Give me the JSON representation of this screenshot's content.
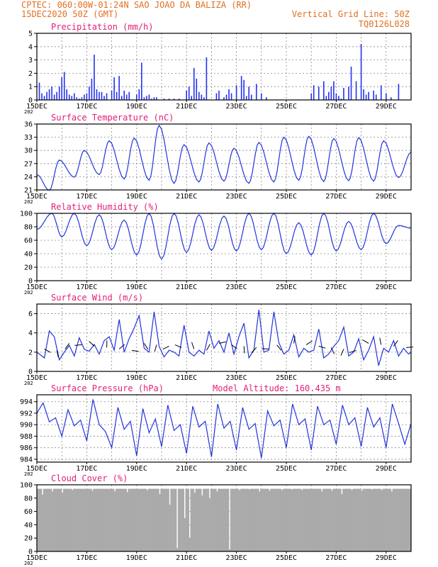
{
  "header": {
    "line1_left": "CPTEC:  060:00W-01:24N  SAO JOAO DA BALIZA (RR)",
    "line2_left": "15DEC2020 50Z (GMT)",
    "line2_right": "Vertical Grid Line: 50Z",
    "line3_right": "TQ0126L028"
  },
  "x_axis": {
    "ticks": [
      "15DEC",
      "17DEC",
      "19DEC",
      "21DEC",
      "23DEC",
      "25DEC",
      "27DEC",
      "29DEC"
    ],
    "year_label": "202",
    "range_days": [
      0,
      15
    ]
  },
  "colors": {
    "line": "#2233dd",
    "bars": "#2233ee",
    "cloud": "#aaaaaa",
    "header": "#e07020",
    "panel_title": "#e0207a"
  },
  "chart_data": [
    {
      "type": "bar",
      "title": "Precipitation (mm/h)",
      "yticks": [
        0,
        1,
        2,
        3,
        4,
        5
      ],
      "ylim": [
        0,
        5
      ],
      "x_unit": "days since 15DEC",
      "x": [
        0.1,
        0.2,
        0.3,
        0.4,
        0.5,
        0.6,
        0.7,
        0.8,
        0.9,
        1.0,
        1.1,
        1.2,
        1.3,
        1.4,
        1.5,
        1.6,
        1.7,
        1.8,
        1.9,
        2.0,
        2.1,
        2.2,
        2.3,
        2.4,
        2.5,
        2.6,
        2.7,
        2.8,
        3.0,
        3.1,
        3.2,
        3.3,
        3.4,
        3.5,
        3.6,
        3.7,
        4.0,
        4.1,
        4.2,
        4.3,
        4.4,
        4.5,
        4.6,
        4.7,
        4.8,
        5.1,
        5.3,
        5.5,
        5.7,
        6.0,
        6.1,
        6.2,
        6.3,
        6.4,
        6.5,
        6.6,
        6.7,
        6.8,
        7.2,
        7.3,
        7.5,
        7.6,
        7.7,
        7.8,
        8.0,
        8.2,
        8.3,
        8.4,
        8.5,
        8.6,
        8.8,
        9.0,
        9.2,
        11.0,
        11.1,
        11.3,
        11.5,
        11.6,
        11.7,
        11.8,
        11.9,
        12.0,
        12.1,
        12.2,
        12.3,
        12.5,
        12.6,
        12.8,
        13.0,
        13.1,
        13.2,
        13.3,
        13.5,
        13.6,
        13.8,
        14.0,
        14.2,
        14.5
      ],
      "values": [
        1.3,
        0.5,
        0.3,
        0.6,
        0.8,
        1.0,
        0.4,
        0.6,
        1.0,
        1.7,
        2.1,
        0.8,
        0.4,
        0.3,
        0.5,
        0.2,
        0.1,
        0.2,
        0.4,
        0.5,
        1.0,
        1.6,
        3.4,
        0.8,
        0.6,
        0.6,
        0.3,
        0.5,
        0.7,
        1.7,
        0.6,
        1.8,
        0.3,
        0.7,
        0.4,
        0.6,
        0.4,
        0.8,
        2.8,
        0.2,
        0.3,
        0.4,
        0.1,
        0.2,
        0.2,
        0.1,
        0.1,
        0.1,
        0.1,
        0.7,
        1.0,
        0.3,
        2.4,
        1.6,
        0.6,
        0.4,
        0.2,
        3.2,
        0.5,
        0.7,
        0.2,
        0.4,
        0.8,
        0.5,
        1.1,
        1.8,
        1.5,
        0.3,
        1.0,
        0.4,
        1.2,
        0.5,
        0.2,
        0.5,
        1.1,
        1.0,
        1.4,
        0.3,
        0.6,
        1.0,
        1.4,
        0.5,
        0.3,
        0.1,
        0.9,
        1.0,
        2.5,
        1.4,
        4.2,
        0.8,
        0.4,
        0.6,
        0.7,
        0.4,
        1.1,
        0.5,
        0.2,
        1.2
      ]
    },
    {
      "type": "line",
      "title": "Surface Temperature (nC)",
      "yticks": [
        21,
        24,
        27,
        30,
        33,
        36
      ],
      "ylim": [
        21,
        36
      ],
      "peak_days": [
        0.0,
        0.9,
        1.9,
        2.9,
        3.9,
        4.9,
        5.9,
        6.9,
        7.9,
        8.9,
        9.9,
        10.9,
        11.9,
        12.9,
        13.9
      ],
      "peaks": [
        24.5,
        27.8,
        30.0,
        32.2,
        32.8,
        35.7,
        31.3,
        31.7,
        30.5,
        31.8,
        33.0,
        33.2,
        32.7,
        32.9,
        32.2
      ],
      "trough_days": [
        0.5,
        1.5,
        2.5,
        3.5,
        4.5,
        5.5,
        6.5,
        7.5,
        8.5,
        9.5,
        10.5,
        11.5,
        12.5,
        13.5,
        14.5
      ],
      "troughs": [
        20.9,
        23.9,
        24.5,
        23.5,
        23.2,
        22.5,
        22.8,
        23.0,
        22.5,
        22.8,
        23.2,
        22.9,
        23.1,
        23.0,
        23.8
      ],
      "end_value": 29.6
    },
    {
      "type": "line",
      "title": "Relative Humidity (%)",
      "yticks": [
        0,
        20,
        40,
        60,
        80,
        100
      ],
      "ylim": [
        0,
        100
      ],
      "peak_days": [
        0.6,
        1.5,
        2.5,
        3.5,
        4.5,
        5.5,
        6.5,
        7.5,
        8.5,
        9.5,
        10.5,
        11.5,
        12.5,
        13.5,
        14.5
      ],
      "peaks": [
        100,
        100,
        98,
        90,
        100,
        100,
        98,
        96,
        100,
        100,
        86,
        100,
        88,
        100,
        82
      ],
      "trough_days": [
        1.0,
        2.0,
        3.0,
        4.0,
        5.0,
        6.0,
        7.0,
        8.0,
        9.0,
        10.0,
        11.0,
        12.0,
        13.0,
        14.0
      ],
      "troughs": [
        65,
        52,
        46,
        38,
        32,
        42,
        45,
        44,
        46,
        40,
        38,
        44,
        46,
        55
      ],
      "start_value": 76,
      "end_value": 78
    },
    {
      "type": "line",
      "title": "Surface Wind (m/s)",
      "yticks": [
        0,
        2,
        4,
        6
      ],
      "ylim": [
        0,
        7
      ],
      "x": [
        0.0,
        0.3,
        0.5,
        0.7,
        0.9,
        1.1,
        1.3,
        1.5,
        1.7,
        1.9,
        2.1,
        2.3,
        2.5,
        2.7,
        2.9,
        3.1,
        3.3,
        3.5,
        3.7,
        3.9,
        4.1,
        4.3,
        4.5,
        4.7,
        4.9,
        5.1,
        5.3,
        5.5,
        5.7,
        5.9,
        6.1,
        6.3,
        6.5,
        6.7,
        6.9,
        7.1,
        7.3,
        7.5,
        7.7,
        7.9,
        8.1,
        8.3,
        8.5,
        8.7,
        8.9,
        9.1,
        9.3,
        9.5,
        9.7,
        9.9,
        10.1,
        10.3,
        10.5,
        10.7,
        10.9,
        11.1,
        11.3,
        11.5,
        11.7,
        11.9,
        12.1,
        12.3,
        12.5,
        12.7,
        12.9,
        13.1,
        13.3,
        13.5,
        13.7,
        13.9,
        14.1,
        14.3,
        14.5,
        14.7,
        14.9,
        15.0
      ],
      "values": [
        2.0,
        1.4,
        4.2,
        3.6,
        1.2,
        2.0,
        2.7,
        1.6,
        3.5,
        2.3,
        2.1,
        2.8,
        1.8,
        3.2,
        3.6,
        2.2,
        5.4,
        2.0,
        3.4,
        4.5,
        5.8,
        2.4,
        2.0,
        6.2,
        2.6,
        1.5,
        2.2,
        2.0,
        1.6,
        4.8,
        2.0,
        1.6,
        2.2,
        1.8,
        4.2,
        2.4,
        3.2,
        2.0,
        4.0,
        1.8,
        3.6,
        5.0,
        1.4,
        2.2,
        6.4,
        2.0,
        2.2,
        6.2,
        3.0,
        1.8,
        2.2,
        3.8,
        1.5,
        2.4,
        2.0,
        2.2,
        4.4,
        1.4,
        1.8,
        2.6,
        3.2,
        4.6,
        1.6,
        2.0,
        3.4,
        1.2,
        2.2,
        3.6,
        0.6,
        2.4,
        2.0,
        3.2,
        1.6,
        2.4,
        1.8,
        2.0
      ]
    },
    {
      "type": "line",
      "title": "Surface Pressure (hPa)",
      "annotation": "Model Altitude: 160.435  m",
      "yticks": [
        984,
        986,
        988,
        990,
        992,
        994
      ],
      "ylim": [
        983.5,
        995.2
      ],
      "x": [
        0.0,
        0.25,
        0.5,
        0.75,
        1.0,
        1.25,
        1.5,
        1.75,
        2.0,
        2.25,
        2.5,
        2.75,
        3.0,
        3.25,
        3.5,
        3.75,
        4.0,
        4.25,
        4.5,
        4.75,
        5.0,
        5.25,
        5.5,
        5.75,
        6.0,
        6.25,
        6.5,
        6.75,
        7.0,
        7.25,
        7.5,
        7.75,
        8.0,
        8.25,
        8.5,
        8.75,
        9.0,
        9.25,
        9.5,
        9.75,
        10.0,
        10.25,
        10.5,
        10.75,
        11.0,
        11.25,
        11.5,
        11.75,
        12.0,
        12.25,
        12.5,
        12.75,
        13.0,
        13.25,
        13.5,
        13.75,
        14.0,
        14.25,
        14.5,
        14.75,
        15.0
      ],
      "values": [
        992.0,
        993.8,
        990.5,
        991.2,
        988.0,
        992.6,
        989.8,
        990.8,
        987.2,
        994.4,
        990.0,
        988.8,
        986.0,
        993.0,
        989.2,
        990.6,
        984.6,
        992.8,
        988.6,
        991.0,
        986.2,
        993.4,
        989.0,
        990.0,
        985.0,
        993.2,
        989.6,
        990.6,
        984.4,
        993.6,
        989.4,
        990.6,
        985.6,
        993.0,
        989.2,
        990.2,
        984.2,
        992.4,
        989.8,
        990.8,
        986.0,
        993.6,
        990.0,
        991.0,
        985.6,
        993.2,
        990.0,
        990.8,
        986.6,
        993.4,
        990.0,
        991.2,
        986.2,
        993.0,
        989.6,
        991.2,
        986.0,
        993.6,
        990.2,
        986.6,
        990.2
      ]
    },
    {
      "type": "bar",
      "title": "Cloud Cover (%)",
      "yticks": [
        0,
        20,
        40,
        60,
        80,
        100
      ],
      "ylim": [
        0,
        100
      ],
      "x_unit": "days since 15DEC",
      "baseline": 94,
      "dips_x": [
        0.2,
        0.6,
        1.0,
        1.4,
        2.2,
        3.1,
        3.6,
        4.4,
        4.9,
        5.3,
        5.6,
        5.9,
        6.1,
        6.3,
        6.6,
        6.9,
        7.2,
        7.7,
        8.1,
        8.5,
        8.9,
        9.3,
        9.8,
        10.2,
        10.6,
        11.0,
        11.4,
        11.8,
        12.2,
        12.6,
        13.0,
        13.4,
        13.8,
        14.2
      ],
      "dips": [
        85,
        90,
        88,
        92,
        91,
        90,
        89,
        92,
        86,
        70,
        5,
        50,
        20,
        88,
        84,
        80,
        90,
        3,
        92,
        93,
        90,
        91,
        92,
        93,
        92,
        94,
        90,
        91,
        86,
        92,
        91,
        93,
        92,
        90
      ]
    }
  ]
}
